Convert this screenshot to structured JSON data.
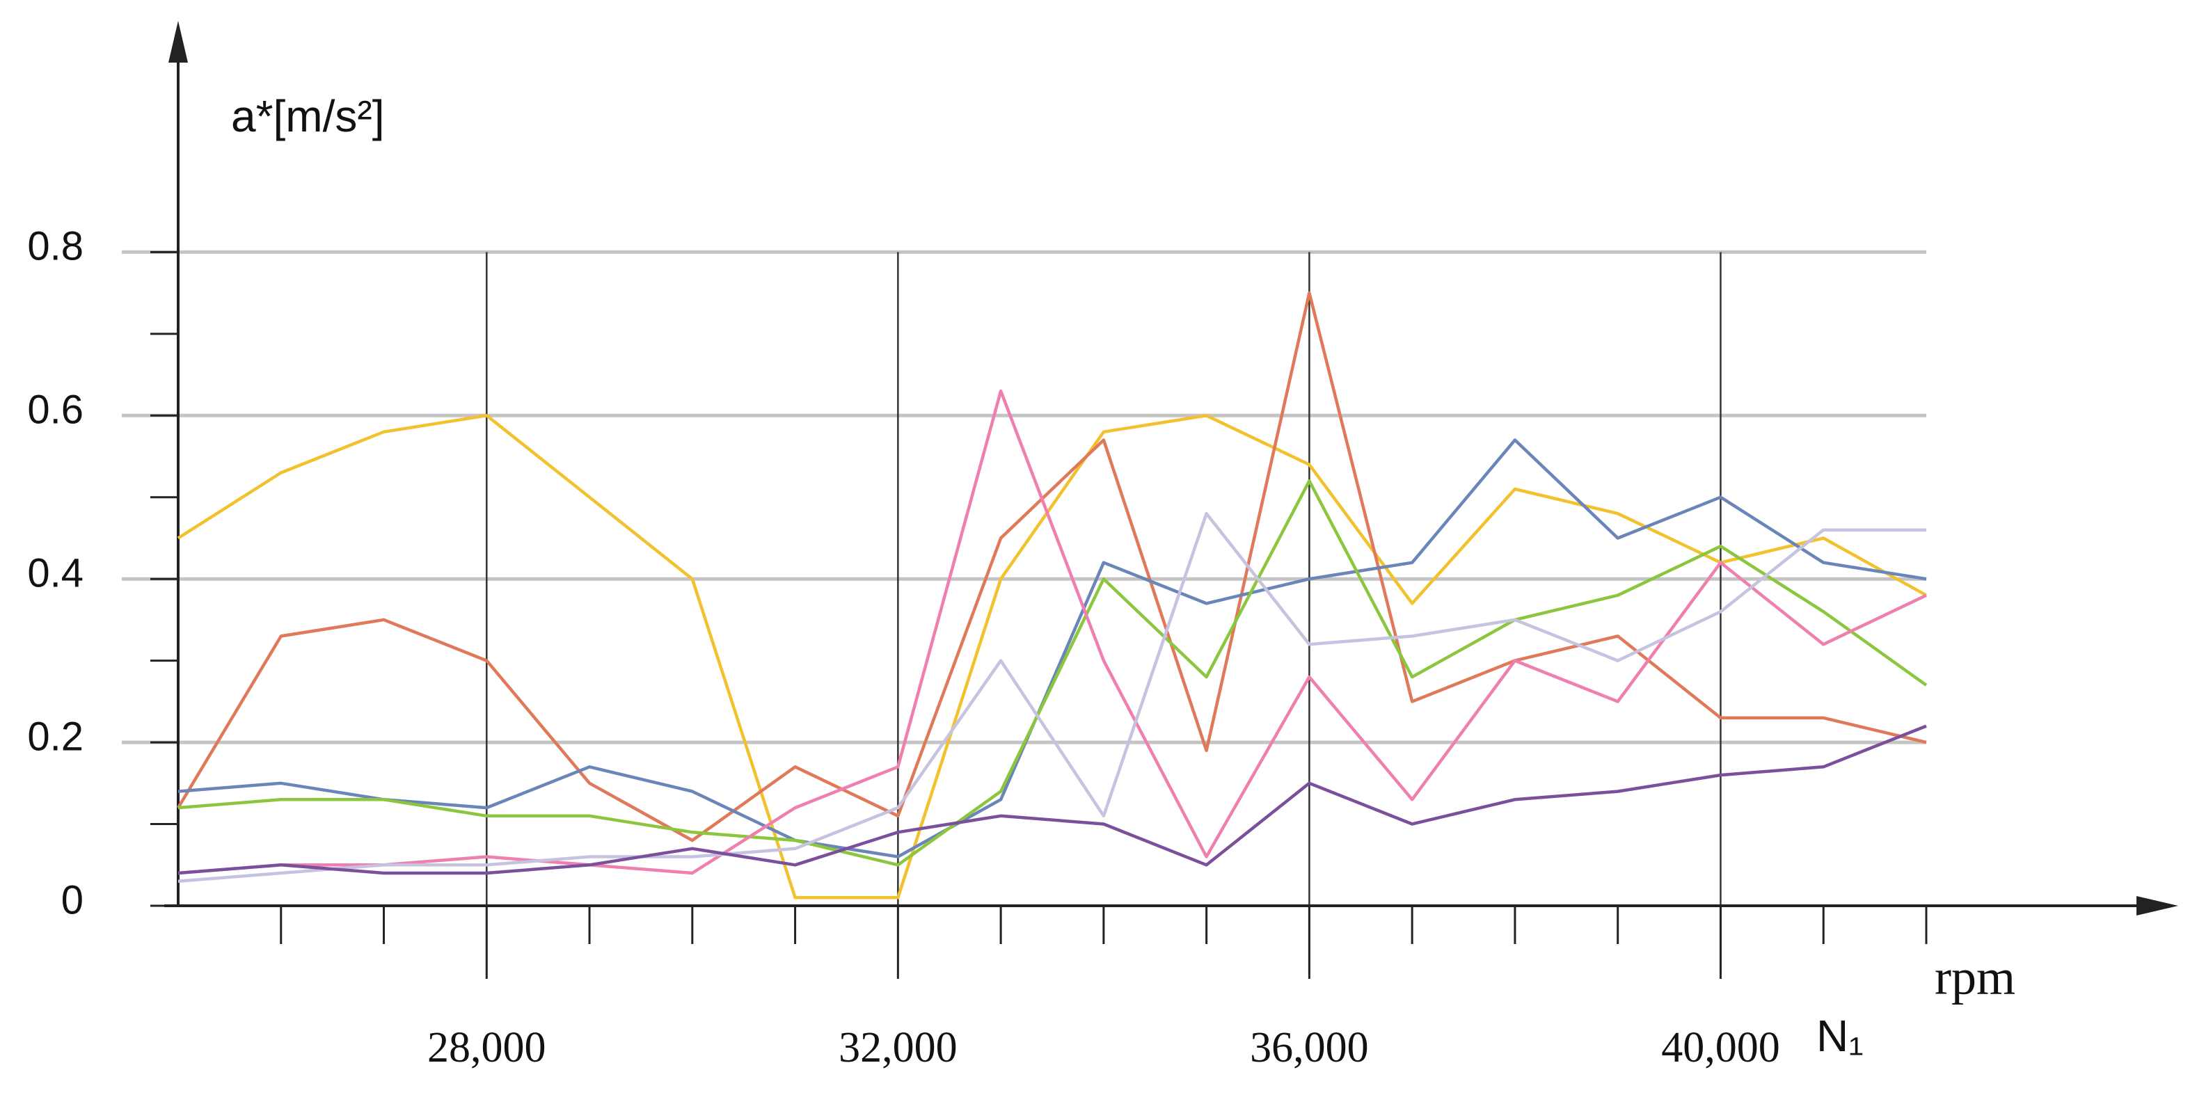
{
  "chart_data": {
    "type": "line",
    "y_label": "a*[m/s²]",
    "x_label": "rpm",
    "x_symbol": "N₁",
    "x": [
      25000,
      26000,
      27000,
      28000,
      29000,
      30000,
      31000,
      32000,
      33000,
      34000,
      35000,
      36000,
      37000,
      38000,
      39000,
      40000,
      41000,
      42000
    ],
    "series": [
      {
        "color": "#f2c12e",
        "values": [
          0.45,
          0.53,
          0.58,
          0.6,
          0.5,
          0.4,
          0.01,
          0.01,
          0.4,
          0.58,
          0.6,
          0.54,
          0.37,
          0.51,
          0.48,
          0.42,
          0.45,
          0.38
        ]
      },
      {
        "color": "#e0785a",
        "values": [
          0.12,
          0.33,
          0.35,
          0.3,
          0.15,
          0.08,
          0.17,
          0.11,
          0.45,
          0.57,
          0.19,
          0.75,
          0.25,
          0.3,
          0.33,
          0.23,
          0.23,
          0.2
        ]
      },
      {
        "color": "#6a85b8",
        "values": [
          0.14,
          0.15,
          0.13,
          0.12,
          0.17,
          0.14,
          0.08,
          0.06,
          0.13,
          0.42,
          0.37,
          0.4,
          0.42,
          0.57,
          0.45,
          0.5,
          0.42,
          0.4
        ]
      },
      {
        "color": "#8cc63f",
        "values": [
          0.12,
          0.13,
          0.13,
          0.11,
          0.11,
          0.09,
          0.08,
          0.05,
          0.14,
          0.4,
          0.28,
          0.52,
          0.28,
          0.35,
          0.38,
          0.44,
          0.36,
          0.27
        ]
      },
      {
        "color": "#ee7fae",
        "values": [
          0.04,
          0.05,
          0.05,
          0.06,
          0.05,
          0.04,
          0.12,
          0.17,
          0.63,
          0.3,
          0.06,
          0.28,
          0.13,
          0.3,
          0.25,
          0.42,
          0.32,
          0.38
        ]
      },
      {
        "color": "#c5c3e0",
        "values": [
          0.03,
          0.04,
          0.05,
          0.05,
          0.06,
          0.06,
          0.07,
          0.12,
          0.3,
          0.11,
          0.48,
          0.32,
          0.33,
          0.35,
          0.3,
          0.36,
          0.46,
          0.46
        ]
      },
      {
        "color": "#7a4f9c",
        "values": [
          0.04,
          0.05,
          0.04,
          0.04,
          0.05,
          0.07,
          0.05,
          0.09,
          0.11,
          0.1,
          0.05,
          0.15,
          0.1,
          0.13,
          0.14,
          0.16,
          0.17,
          0.22
        ]
      }
    ],
    "xlim": [
      25000,
      44450
    ],
    "ylim": [
      0,
      1.083
    ],
    "xticks": [
      {
        "value": 28000,
        "label": "28,000"
      },
      {
        "value": 32000,
        "label": "32,000"
      },
      {
        "value": 36000,
        "label": "36,000"
      },
      {
        "value": 40000,
        "label": "40,000"
      }
    ],
    "xminor": [
      26000,
      27000,
      29000,
      30000,
      31000,
      33000,
      34000,
      35000,
      37000,
      38000,
      39000,
      41000,
      42000
    ],
    "yticks": [
      0,
      0.2,
      0.4,
      0.6,
      0.8
    ],
    "yminor": [
      0.1,
      0.3,
      0.5,
      0.7
    ],
    "grid": true
  }
}
